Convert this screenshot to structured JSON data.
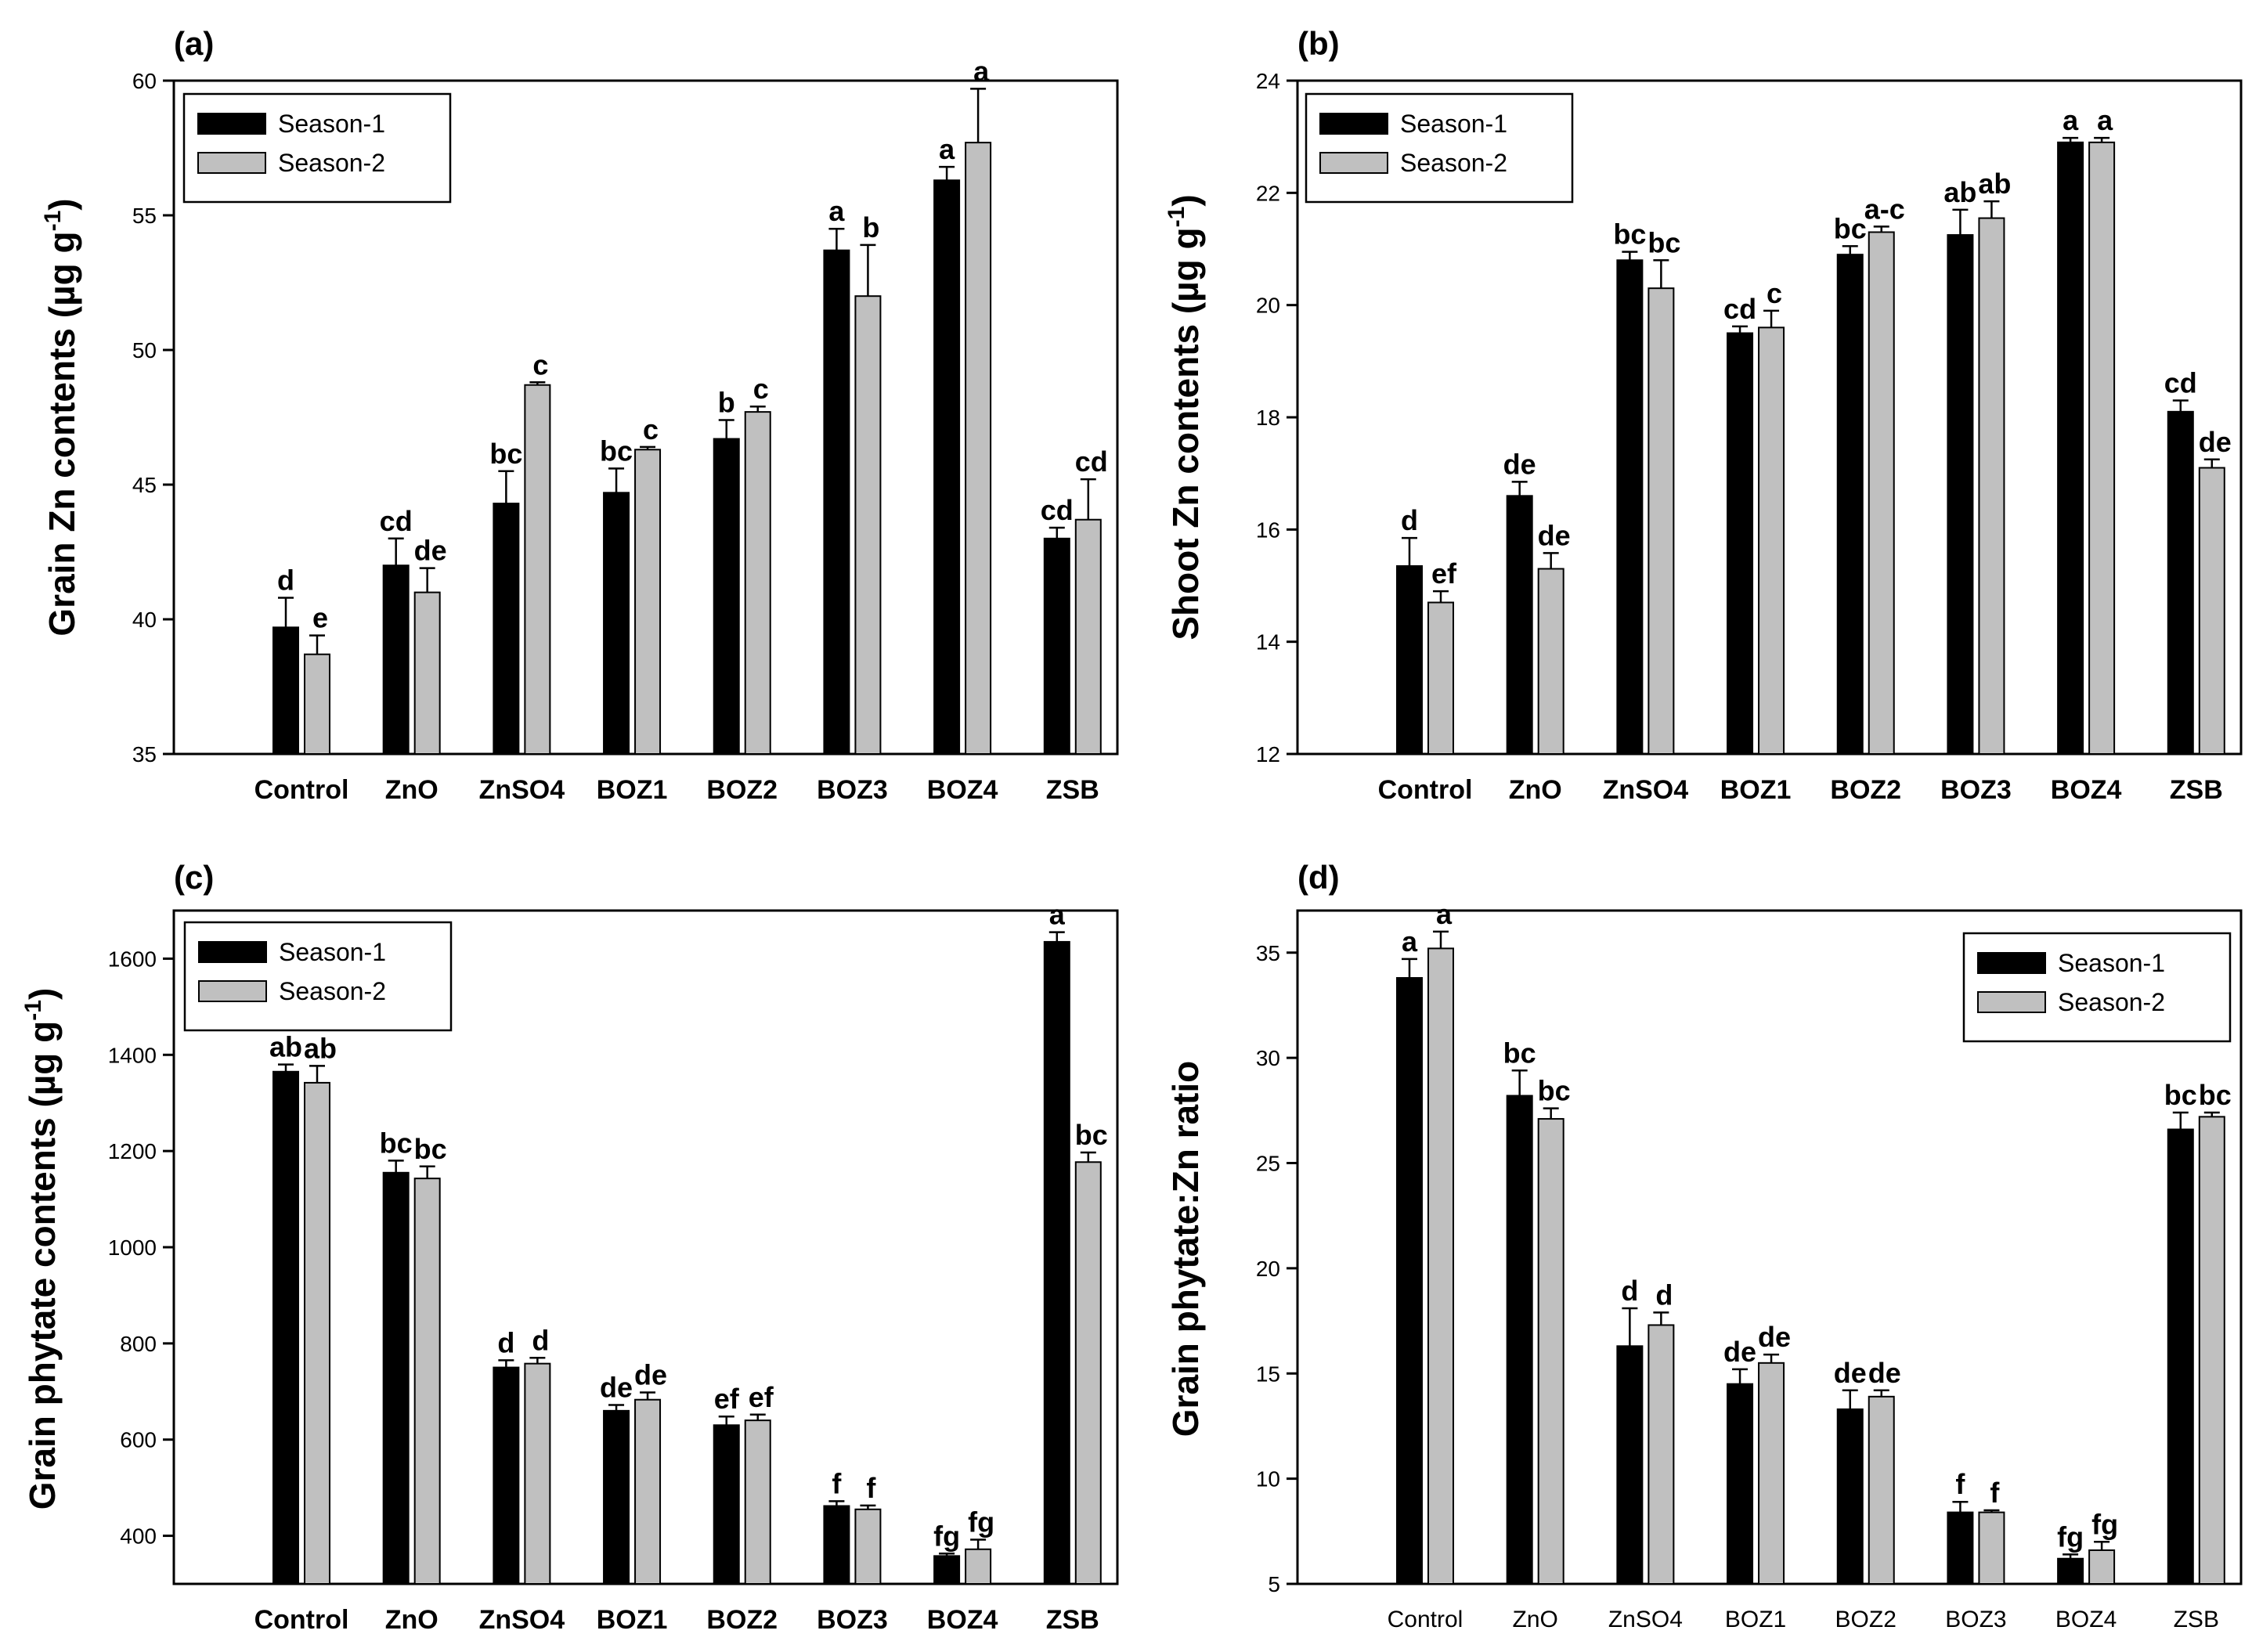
{
  "colors": {
    "season1": "#000000",
    "season2": "#c0c0c0",
    "axis": "#000000"
  },
  "legend": [
    "Season-1",
    "Season-2"
  ],
  "chart_data": [
    {
      "panel": "(a)",
      "type": "bar",
      "ylabel": "Grain Zn contents (µg g-1)",
      "ylabel_main": "Grain Zn contents (µg g",
      "ylabel_sup": "-1",
      "ylabel_tail": ")",
      "ylim": [
        35,
        60
      ],
      "yticks": [
        "35",
        "40",
        "45",
        "50",
        "55",
        "60"
      ],
      "legend_position": "top-left",
      "categories": [
        "Control",
        "ZnO",
        "ZnSO4",
        "BOZ1",
        "BOZ2",
        "BOZ3",
        "BOZ4",
        "ZSB"
      ],
      "series": [
        {
          "name": "Season-1",
          "values": [
            39.7,
            42.0,
            44.3,
            44.7,
            46.7,
            53.7,
            56.3,
            43.0
          ],
          "errors": [
            1.1,
            1.0,
            1.2,
            0.9,
            0.7,
            0.8,
            0.5,
            0.4
          ],
          "letters": [
            "d",
            "cd",
            "bc",
            "bc",
            "b",
            "a",
            "a",
            "cd"
          ]
        },
        {
          "name": "Season-2",
          "values": [
            38.7,
            41.0,
            48.7,
            46.3,
            47.7,
            52.0,
            57.7,
            43.7
          ],
          "errors": [
            0.7,
            0.9,
            0.1,
            0.1,
            0.2,
            1.9,
            2.0,
            1.5
          ],
          "letters": [
            "e",
            "de",
            "c",
            "c",
            "c",
            "b",
            "a",
            "cd"
          ]
        }
      ]
    },
    {
      "panel": "(b)",
      "type": "bar",
      "ylabel": "Shoot Zn contents (µg g-1)",
      "ylabel_main": "Shoot Zn contents (µg g",
      "ylabel_sup": "-1",
      "ylabel_tail": ")",
      "ylim": [
        12,
        24
      ],
      "yticks": [
        "12",
        "14",
        "16",
        "18",
        "20",
        "22",
        "24"
      ],
      "legend_position": "top-left",
      "categories": [
        "Control",
        "ZnO",
        "ZnSO4",
        "BOZ1",
        "BOZ2",
        "BOZ3",
        "BOZ4",
        "ZSB"
      ],
      "series": [
        {
          "name": "Season-1",
          "values": [
            15.35,
            16.6,
            20.8,
            19.5,
            20.9,
            21.25,
            22.9,
            18.1
          ],
          "errors": [
            0.5,
            0.25,
            0.15,
            0.12,
            0.15,
            0.45,
            0.08,
            0.2
          ],
          "letters": [
            "d",
            "de",
            "bc",
            "cd",
            "bc",
            "ab",
            "a",
            "cd"
          ]
        },
        {
          "name": "Season-2",
          "values": [
            14.7,
            15.3,
            20.3,
            19.6,
            21.3,
            21.55,
            22.9,
            17.1
          ],
          "errors": [
            0.2,
            0.28,
            0.5,
            0.3,
            0.1,
            0.3,
            0.08,
            0.15
          ],
          "letters": [
            "ef",
            "de",
            "bc",
            "c",
            "a-c",
            "ab",
            "a",
            "de"
          ]
        }
      ]
    },
    {
      "panel": "(c)",
      "type": "bar",
      "ylabel": "Grain phytate contents (µg g-1)",
      "ylabel_main": "Grain phytate contents (µg g",
      "ylabel_sup": "-1",
      "ylabel_tail": ")",
      "ylim": [
        300,
        1700
      ],
      "yticks": [
        "400",
        "600",
        "800",
        "1000",
        "1200",
        "1400",
        "1600"
      ],
      "legend_position": "top-left",
      "categories": [
        "Control",
        "ZnO",
        "ZnSO4",
        "BOZ1",
        "BOZ2",
        "BOZ3",
        "BOZ4",
        "ZSB"
      ],
      "series": [
        {
          "name": "Season-1",
          "values": [
            1365,
            1155,
            750,
            660,
            630,
            462,
            358,
            1635
          ],
          "errors": [
            15,
            25,
            15,
            12,
            18,
            10,
            5,
            20
          ],
          "letters": [
            "ab",
            "bc",
            "d",
            "de",
            "ef",
            "f",
            "fg",
            "a"
          ]
        },
        {
          "name": "Season-2",
          "values": [
            1342,
            1143,
            758,
            683,
            640,
            455,
            372,
            1177
          ],
          "errors": [
            35,
            25,
            12,
            15,
            12,
            8,
            20,
            20
          ],
          "letters": [
            "ab",
            "bc",
            "d",
            "de",
            "ef",
            "f",
            "fg",
            "bc"
          ]
        }
      ]
    },
    {
      "panel": "(d)",
      "type": "bar",
      "ylabel": "Grain phytate:Zn ratio",
      "ylabel_main": "Grain phytate:Zn ratio",
      "ylabel_sup": "",
      "ylabel_tail": "",
      "ylim": [
        5,
        37
      ],
      "yticks": [
        "5",
        "10",
        "15",
        "20",
        "25",
        "30",
        "35"
      ],
      "legend_position": "top-right",
      "categories": [
        "Control",
        "ZnO",
        "ZnSO4",
        "BOZ1",
        "BOZ2",
        "BOZ3",
        "BOZ4",
        "ZSB"
      ],
      "series": [
        {
          "name": "Season-1",
          "values": [
            33.8,
            28.2,
            16.3,
            14.5,
            13.3,
            8.4,
            6.2,
            26.6
          ],
          "errors": [
            0.9,
            1.2,
            1.8,
            0.7,
            0.9,
            0.5,
            0.2,
            0.8
          ],
          "letters": [
            "a",
            "bc",
            "d",
            "de",
            "de",
            "f",
            "fg",
            "bc"
          ]
        },
        {
          "name": "Season-2",
          "values": [
            35.2,
            27.1,
            17.3,
            15.5,
            13.9,
            8.4,
            6.6,
            27.2
          ],
          "errors": [
            0.8,
            0.5,
            0.6,
            0.4,
            0.3,
            0.1,
            0.4,
            0.2
          ],
          "letters": [
            "a",
            "bc",
            "d",
            "de",
            "de",
            "f",
            "fg",
            "bc"
          ]
        }
      ]
    }
  ]
}
